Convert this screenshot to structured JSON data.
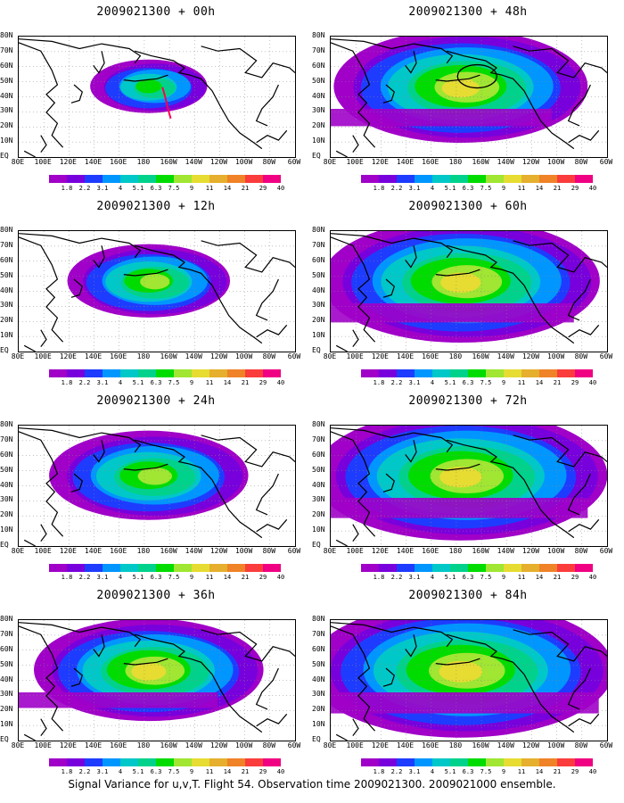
{
  "caption": "Signal Variance for u,v,T. Flight 54. Observation time 2009021300. 2009021000 ensemble.",
  "panels": [
    {
      "title": "2009021300 + 00h",
      "lead": "00h",
      "intensity": 0.45,
      "extent": 0.35,
      "marker": "red-track"
    },
    {
      "title": "2009021300 + 48h",
      "lead": "48h",
      "intensity": 0.8,
      "extent": 0.8,
      "marker": "circle"
    },
    {
      "title": "2009021300 + 12h",
      "lead": "12h",
      "intensity": 0.65,
      "extent": 0.5,
      "marker": ""
    },
    {
      "title": "2009021300 + 60h",
      "lead": "60h",
      "intensity": 0.85,
      "extent": 0.88,
      "marker": ""
    },
    {
      "title": "2009021300 + 24h",
      "lead": "24h",
      "intensity": 0.72,
      "extent": 0.62,
      "marker": ""
    },
    {
      "title": "2009021300 + 72h",
      "lead": "72h",
      "intensity": 0.88,
      "extent": 0.93,
      "marker": ""
    },
    {
      "title": "2009021300 + 36h",
      "lead": "36h",
      "intensity": 0.76,
      "extent": 0.72,
      "marker": ""
    },
    {
      "title": "2009021300 + 84h",
      "lead": "84h",
      "intensity": 0.9,
      "extent": 0.97,
      "marker": ""
    }
  ],
  "map": {
    "lon_labels": [
      "80E",
      "100E",
      "120E",
      "140E",
      "160E",
      "180",
      "160W",
      "140W",
      "120W",
      "100W",
      "80W",
      "60W"
    ],
    "lat_labels": [
      "80N",
      "70N",
      "60N",
      "50N",
      "40N",
      "30N",
      "20N",
      "10N",
      "EQ"
    ],
    "lon_range": [
      80,
      300
    ],
    "lat_range": [
      0,
      80
    ]
  },
  "colorbar": {
    "labels": [
      "1.8",
      "2.2",
      "3.1",
      "4",
      "5.1",
      "6.3",
      "7.5",
      "9",
      "11",
      "14",
      "21",
      "29",
      "40"
    ],
    "colors": [
      "#a000c8",
      "#7800dc",
      "#1e3cff",
      "#0096ff",
      "#00c8c8",
      "#00d28c",
      "#00dc00",
      "#a0e632",
      "#e6dc32",
      "#e6af2d",
      "#f08228",
      "#fa3c3c",
      "#f00082"
    ]
  }
}
